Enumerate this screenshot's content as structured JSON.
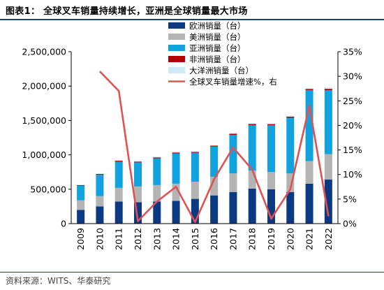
{
  "header": {
    "title": "图表1：  全球叉车销量持续增长，亚洲是全球销量最大市场"
  },
  "footer": {
    "source": "资料来源：WITS、华泰研究"
  },
  "chart_data": {
    "type": "bar",
    "stacked": true,
    "title": "全球叉车销量持续增长，亚洲是全球销量最大市场",
    "categories": [
      "2009",
      "2010",
      "2011",
      "2012",
      "2013",
      "2014",
      "2015",
      "2016",
      "2017",
      "2018",
      "2019",
      "2020",
      "2021",
      "2022"
    ],
    "series": [
      {
        "name": "欧洲销量（台）",
        "color": "#0b3a82",
        "values": [
          200000,
          250000,
          320000,
          310000,
          320000,
          330000,
          360000,
          410000,
          460000,
          510000,
          500000,
          460000,
          580000,
          640000
        ]
      },
      {
        "name": "美洲销量（台）",
        "color": "#b4b4b4",
        "values": [
          140000,
          150000,
          200000,
          230000,
          240000,
          250000,
          250000,
          270000,
          270000,
          260000,
          250000,
          270000,
          330000,
          370000
        ]
      },
      {
        "name": "亚洲销量（台）",
        "color": "#11a3e0",
        "values": [
          210000,
          310000,
          380000,
          350000,
          390000,
          440000,
          420000,
          440000,
          560000,
          660000,
          680000,
          810000,
          1030000,
          930000
        ]
      },
      {
        "name": "非洲销量（台）",
        "color": "#b40000",
        "values": [
          10000,
          12000,
          14000,
          12000,
          13000,
          14000,
          13000,
          14000,
          16000,
          18000,
          17000,
          16000,
          18000,
          20000
        ]
      },
      {
        "name": "大洋洲销量（台）",
        "color": "#cfe9f7",
        "values": [
          8000,
          8000,
          12000,
          10000,
          12000,
          12000,
          10000,
          10000,
          12000,
          14000,
          12000,
          12000,
          15000,
          20000
        ]
      }
    ],
    "line_series": {
      "name": "全球叉车销量增速%，右",
      "color": "#e05252",
      "axis": "right",
      "values": [
        null,
        31,
        27,
        0.5,
        4.5,
        7.5,
        0.3,
        9,
        15.5,
        11,
        1,
        7,
        24,
        1.5
      ]
    },
    "y_left": {
      "min": 0,
      "max": 2500000,
      "ticks": [
        "0",
        "500,000",
        "1,000,000",
        "1,500,000",
        "2,000,000",
        "2,500,000"
      ]
    },
    "y_right": {
      "min": 0,
      "max": 35,
      "ticks": [
        "0%",
        "5%",
        "10%",
        "15%",
        "20%",
        "25%",
        "30%",
        "35%"
      ]
    },
    "legend_position": "top-center",
    "grid": false
  }
}
